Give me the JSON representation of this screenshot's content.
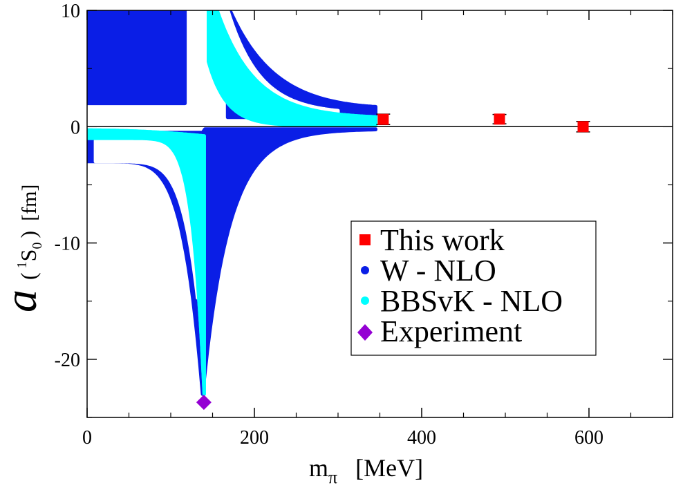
{
  "chart_data": {
    "type": "scatter",
    "title": "",
    "xlabel": {
      "symbol": "m",
      "subscript": "π",
      "unit": "[MeV]"
    },
    "ylabel": {
      "symbol": "a",
      "open": "(",
      "superscript": "1",
      "letter": "S",
      "subscript": "0",
      "close": ")",
      "unit": "[fm]"
    },
    "xlim": [
      0,
      700
    ],
    "ylim": [
      -25,
      10
    ],
    "xticks": [
      0,
      200,
      400,
      600
    ],
    "xtick_labels": [
      "0",
      "200",
      "400",
      "600"
    ],
    "yticks": [
      10,
      0,
      -10,
      -20
    ],
    "ytick_labels": [
      "10",
      "0",
      "-10",
      "-20"
    ],
    "zero_line": true,
    "grid": false,
    "legend_position": "right",
    "series": [
      {
        "name": "This work",
        "marker": "square",
        "color": "#ff0000",
        "points": [
          {
            "x": 354,
            "y": 0.63,
            "yerr": 0.45
          },
          {
            "x": 493,
            "y": 0.65,
            "yerr": 0.4
          },
          {
            "x": 593,
            "y": 0.0,
            "yerr": 0.45
          }
        ]
      },
      {
        "name": "W - NLO",
        "marker": "circle",
        "color": "#0a1ee6",
        "band": {
          "positive_left": {
            "pole": 120,
            "x_range": [
              0,
              117
            ],
            "y_at_0": [
              2.0,
              10
            ],
            "y_at_right": [
              2.0,
              10
            ]
          },
          "positive_right": {
            "x_range": [
              168,
              345
            ],
            "y_at_345": [
              1.5,
              0.6
            ]
          },
          "negative_left": {
            "x_range": [
              0,
              138
            ],
            "y_at_0": [
              -0.5,
              -3.0
            ],
            "y_at_138": [
              -0.5,
              -23
            ]
          },
          "negative_right": {
            "x_range": [
              138,
              345
            ]
          }
        }
      },
      {
        "name": "BBSvK - NLO",
        "marker": "circle",
        "color": "#00ffff",
        "band": {
          "positive": {
            "x_range": [
              145,
              345
            ],
            "y_at_345": [
              0.7,
              0.1
            ]
          },
          "negative": {
            "x_range": [
              0,
              140
            ],
            "y_at_0": [
              -0.3,
              -1.0
            ],
            "y_at_140": [
              -1,
              -23
            ]
          }
        }
      },
      {
        "name": "Experiment",
        "marker": "diamond",
        "color": "#9400d3",
        "points": [
          {
            "x": 139.6,
            "y": -23.7
          }
        ]
      }
    ]
  }
}
